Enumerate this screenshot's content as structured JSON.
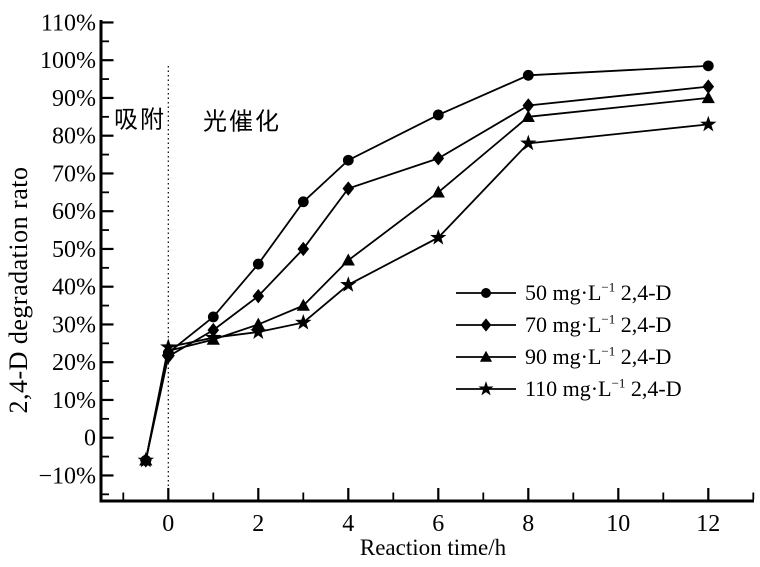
{
  "figure": {
    "background": "#ffffff",
    "ink_color": "#000000"
  },
  "chart_data": {
    "type": "line",
    "title": "",
    "xlabel": "Reaction time/h",
    "ylabel": "2,4-D degradation rato",
    "y_unit": "%",
    "xlim": [
      -1.5,
      13.1
    ],
    "ylim": [
      -17,
      110.5
    ],
    "grid": false,
    "legend_position": "right-center",
    "x_major_ticks": [
      {
        "v": 0,
        "label": "0"
      },
      {
        "v": 2,
        "label": "2"
      },
      {
        "v": 4,
        "label": "4"
      },
      {
        "v": 6,
        "label": "6"
      },
      {
        "v": 8,
        "label": "8"
      },
      {
        "v": 10,
        "label": "10"
      },
      {
        "v": 12,
        "label": "12"
      }
    ],
    "x_minor_ticks": [
      -1,
      1,
      3,
      5,
      7,
      9,
      11,
      13
    ],
    "y_major_ticks": [
      {
        "v": 110,
        "label": "110%"
      },
      {
        "v": 100,
        "label": "100%"
      },
      {
        "v": 90,
        "label": "90%"
      },
      {
        "v": 80,
        "label": "80%"
      },
      {
        "v": 70,
        "label": "70%"
      },
      {
        "v": 60,
        "label": "60%"
      },
      {
        "v": 50,
        "label": "50%"
      },
      {
        "v": 40,
        "label": "40%"
      },
      {
        "v": 30,
        "label": "30%"
      },
      {
        "v": 20,
        "label": "20%"
      },
      {
        "v": 10,
        "label": "10%"
      },
      {
        "v": 0,
        "label": "0"
      },
      {
        "v": -10,
        "label": "−10%"
      }
    ],
    "y_minor_ticks": [
      -15,
      -5,
      5,
      15,
      25,
      35,
      45,
      55,
      65,
      75,
      85,
      95,
      105
    ],
    "phase_divider_x": 0,
    "annotations": [
      {
        "text": "吸附",
        "x": -0.7,
        "y": 85
      },
      {
        "text": "光催化",
        "x": 1.6,
        "y": 84
      }
    ],
    "x": [
      -0.5,
      0,
      1,
      2,
      3,
      4,
      6,
      8,
      12
    ],
    "series": [
      {
        "name": "50 mg·L⁻¹ 2,4-D",
        "marker": "circle",
        "values": [
          -6,
          22.5,
          32,
          46,
          62.5,
          73.5,
          85.5,
          96,
          98.5
        ]
      },
      {
        "name": "70 mg·L⁻¹ 2,4-D",
        "marker": "diamond",
        "values": [
          -6,
          21.5,
          28.5,
          37.5,
          50,
          66,
          74,
          88,
          93
        ]
      },
      {
        "name": "90 mg·L⁻¹ 2,4-D",
        "marker": "triangle",
        "values": [
          -6,
          23,
          26,
          30,
          35,
          47,
          65,
          85,
          90
        ]
      },
      {
        "name": "110 mg·L⁻¹ 2,4-D",
        "marker": "star",
        "values": [
          -6,
          24,
          26.5,
          28,
          30.5,
          40.5,
          53,
          78,
          83
        ]
      }
    ],
    "legend": {
      "entries": [
        {
          "marker": "circle",
          "label_pre": "50 mg·L",
          "label_sup": "−1",
          "label_post": " 2,4-D"
        },
        {
          "marker": "diamond",
          "label_pre": "70 mg·L",
          "label_sup": "−1",
          "label_post": " 2,4-D"
        },
        {
          "marker": "triangle",
          "label_pre": "90 mg·L",
          "label_sup": "−1",
          "label_post": " 2,4-D"
        },
        {
          "marker": "star",
          "label_pre": "110 mg·L",
          "label_sup": "−1",
          "label_post": " 2,4-D"
        }
      ]
    }
  }
}
